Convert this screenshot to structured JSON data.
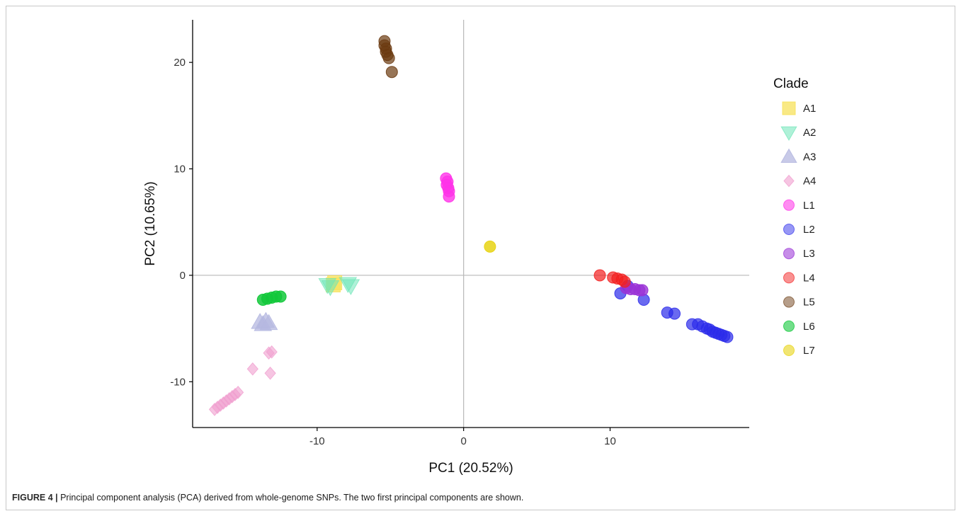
{
  "caption": {
    "label": "FIGURE 4 |",
    "text": " Principal component analysis (PCA) derived from whole-genome SNPs. The two first principal components are shown."
  },
  "chart_data": {
    "type": "scatter",
    "xlabel": "PC1 (20.52%)",
    "ylabel": "PC2 (10.65%)",
    "xlim": [
      -18.5,
      19.5
    ],
    "ylim": [
      -14.3,
      24
    ],
    "xticks": [
      -10,
      0,
      10
    ],
    "yticks": [
      -10,
      0,
      10,
      20
    ],
    "zero_lines": true,
    "legend_title": "Clade",
    "legend_position": "right",
    "series": [
      {
        "name": "A1",
        "shape": "square",
        "color": "#f7e15c",
        "opacity": 0.75,
        "points": [
          [
            -8.8,
            -0.7
          ],
          [
            -8.9,
            -0.9
          ]
        ]
      },
      {
        "name": "A2",
        "shape": "triangle-down",
        "color": "#6ee6b8",
        "opacity": 0.55,
        "points": [
          [
            -9.3,
            -0.9
          ],
          [
            -9.1,
            -1.1
          ],
          [
            -7.9,
            -0.8
          ],
          [
            -7.7,
            -1.0
          ]
        ]
      },
      {
        "name": "A3",
        "shape": "triangle-up",
        "color": "#b5b8e0",
        "opacity": 0.75,
        "points": [
          [
            -13.9,
            -4.4
          ],
          [
            -13.7,
            -4.6
          ],
          [
            -13.5,
            -4.3
          ],
          [
            -13.3,
            -4.5
          ]
        ]
      },
      {
        "name": "A4",
        "shape": "diamond",
        "color": "#f09ecf",
        "opacity": 0.6,
        "points": [
          [
            -17.0,
            -12.6
          ],
          [
            -16.8,
            -12.4
          ],
          [
            -16.6,
            -12.2
          ],
          [
            -16.4,
            -12.0
          ],
          [
            -16.2,
            -11.8
          ],
          [
            -16.0,
            -11.6
          ],
          [
            -15.8,
            -11.4
          ],
          [
            -15.6,
            -11.2
          ],
          [
            -15.4,
            -11.0
          ],
          [
            -14.4,
            -8.8
          ],
          [
            -13.3,
            -7.3
          ],
          [
            -13.1,
            -7.2
          ],
          [
            -13.2,
            -9.2
          ]
        ]
      },
      {
        "name": "L1",
        "shape": "circle",
        "color": "#ff33e8",
        "opacity": 0.8,
        "points": [
          [
            -1.2,
            9.1
          ],
          [
            -1.1,
            8.8
          ],
          [
            -1.15,
            8.5
          ],
          [
            -1.05,
            8.2
          ],
          [
            -1.0,
            7.9
          ],
          [
            -1.0,
            7.4
          ]
        ]
      },
      {
        "name": "L2",
        "shape": "circle",
        "color": "#2b2bea",
        "opacity": 0.7,
        "points": [
          [
            10.7,
            -1.7
          ],
          [
            11.2,
            -1.0
          ],
          [
            12.3,
            -2.3
          ],
          [
            13.9,
            -3.5
          ],
          [
            14.4,
            -3.6
          ],
          [
            15.6,
            -4.6
          ],
          [
            16.0,
            -4.6
          ],
          [
            16.3,
            -4.8
          ],
          [
            16.6,
            -5.0
          ],
          [
            16.8,
            -5.1
          ],
          [
            17.0,
            -5.3
          ],
          [
            17.2,
            -5.4
          ],
          [
            17.4,
            -5.5
          ],
          [
            17.6,
            -5.6
          ],
          [
            17.8,
            -5.7
          ],
          [
            18.0,
            -5.8
          ]
        ]
      },
      {
        "name": "L3",
        "shape": "circle",
        "color": "#9a33d6",
        "opacity": 0.8,
        "points": [
          [
            11.1,
            -1.2
          ],
          [
            11.4,
            -1.3
          ],
          [
            11.7,
            -1.3
          ],
          [
            12.0,
            -1.4
          ],
          [
            12.2,
            -1.4
          ]
        ]
      },
      {
        "name": "L4",
        "shape": "circle",
        "color": "#f21f1f",
        "opacity": 0.7,
        "points": [
          [
            9.3,
            0.0
          ],
          [
            10.2,
            -0.2
          ],
          [
            10.5,
            -0.3
          ],
          [
            10.8,
            -0.4
          ],
          [
            11.0,
            -0.6
          ]
        ]
      },
      {
        "name": "L5",
        "shape": "circle",
        "color": "#6b3a10",
        "opacity": 0.7,
        "points": [
          [
            -5.4,
            22.0
          ],
          [
            -5.4,
            21.6
          ],
          [
            -5.3,
            21.3
          ],
          [
            -5.3,
            21.0
          ],
          [
            -5.2,
            20.7
          ],
          [
            -5.1,
            20.4
          ],
          [
            -4.9,
            19.1
          ]
        ]
      },
      {
        "name": "L6",
        "shape": "circle",
        "color": "#12c83a",
        "opacity": 0.85,
        "points": [
          [
            -13.7,
            -2.3
          ],
          [
            -13.4,
            -2.2
          ],
          [
            -13.1,
            -2.1
          ],
          [
            -12.8,
            -2.0
          ],
          [
            -12.5,
            -2.0
          ]
        ]
      },
      {
        "name": "L7",
        "shape": "circle",
        "color": "#e8d414",
        "opacity": 0.85,
        "points": [
          [
            1.8,
            2.7
          ]
        ]
      }
    ]
  }
}
